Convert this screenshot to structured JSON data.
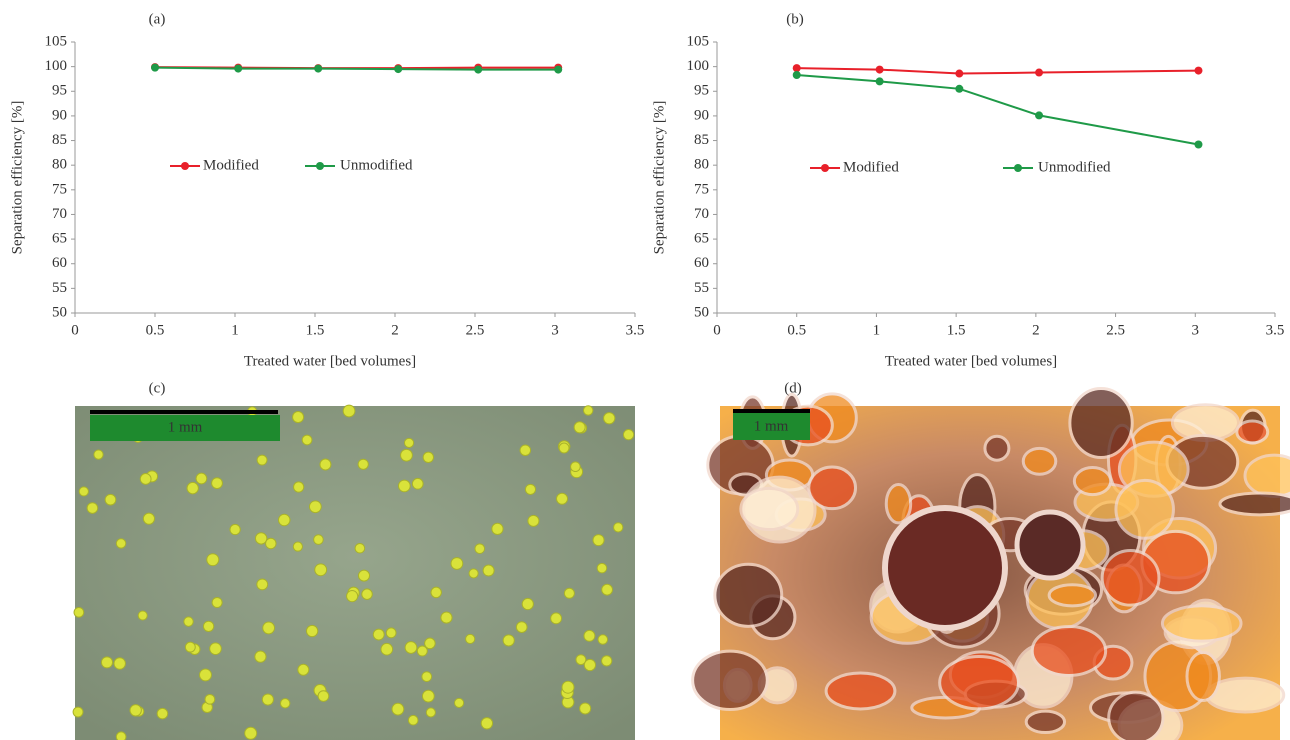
{
  "chart_data": [
    {
      "type": "line",
      "title": "(a)",
      "x_label": "Treated water [bed volumes]",
      "y_label": "Separation efficiency [%]",
      "xlim": [
        0,
        3.5
      ],
      "xticks": [
        0,
        0.5,
        1,
        1.5,
        2,
        2.5,
        3,
        3.5
      ],
      "ylim": [
        50,
        105
      ],
      "yticks": [
        50,
        55,
        60,
        65,
        70,
        75,
        80,
        85,
        90,
        95,
        100,
        105
      ],
      "x": [
        0.5,
        1.02,
        1.52,
        2.02,
        2.52,
        3.02
      ],
      "series": [
        {
          "name": "Modified",
          "color": "#e8202a",
          "values": [
            99.9,
            99.8,
            99.7,
            99.7,
            99.8,
            99.8
          ]
        },
        {
          "name": "Unmodified",
          "color": "#1f9a48",
          "values": [
            99.8,
            99.6,
            99.6,
            99.5,
            99.4,
            99.4
          ]
        }
      ]
    },
    {
      "type": "line",
      "title": "(b)",
      "x_label": "Treated water [bed volumes]",
      "y_label": "Separation efficiency [%]",
      "xlim": [
        0,
        3.5
      ],
      "xticks": [
        0,
        0.5,
        1,
        1.5,
        2,
        2.5,
        3,
        3.5
      ],
      "ylim": [
        50,
        105
      ],
      "yticks": [
        50,
        55,
        60,
        65,
        70,
        75,
        80,
        85,
        90,
        95,
        100,
        105
      ],
      "x": [
        0.5,
        1.02,
        1.52,
        2.02,
        3.02
      ],
      "series": [
        {
          "name": "Modified",
          "color": "#e8202a",
          "values": [
            99.7,
            99.4,
            98.6,
            98.8,
            99.2
          ]
        },
        {
          "name": "Unmodified",
          "color": "#1f9a48",
          "values": [
            98.3,
            97.0,
            95.5,
            90.1,
            84.2
          ]
        }
      ]
    }
  ],
  "images": [
    {
      "label": "(c)",
      "scale_bar": "1 mm"
    },
    {
      "label": "(d)",
      "scale_bar": "1 mm"
    }
  ]
}
